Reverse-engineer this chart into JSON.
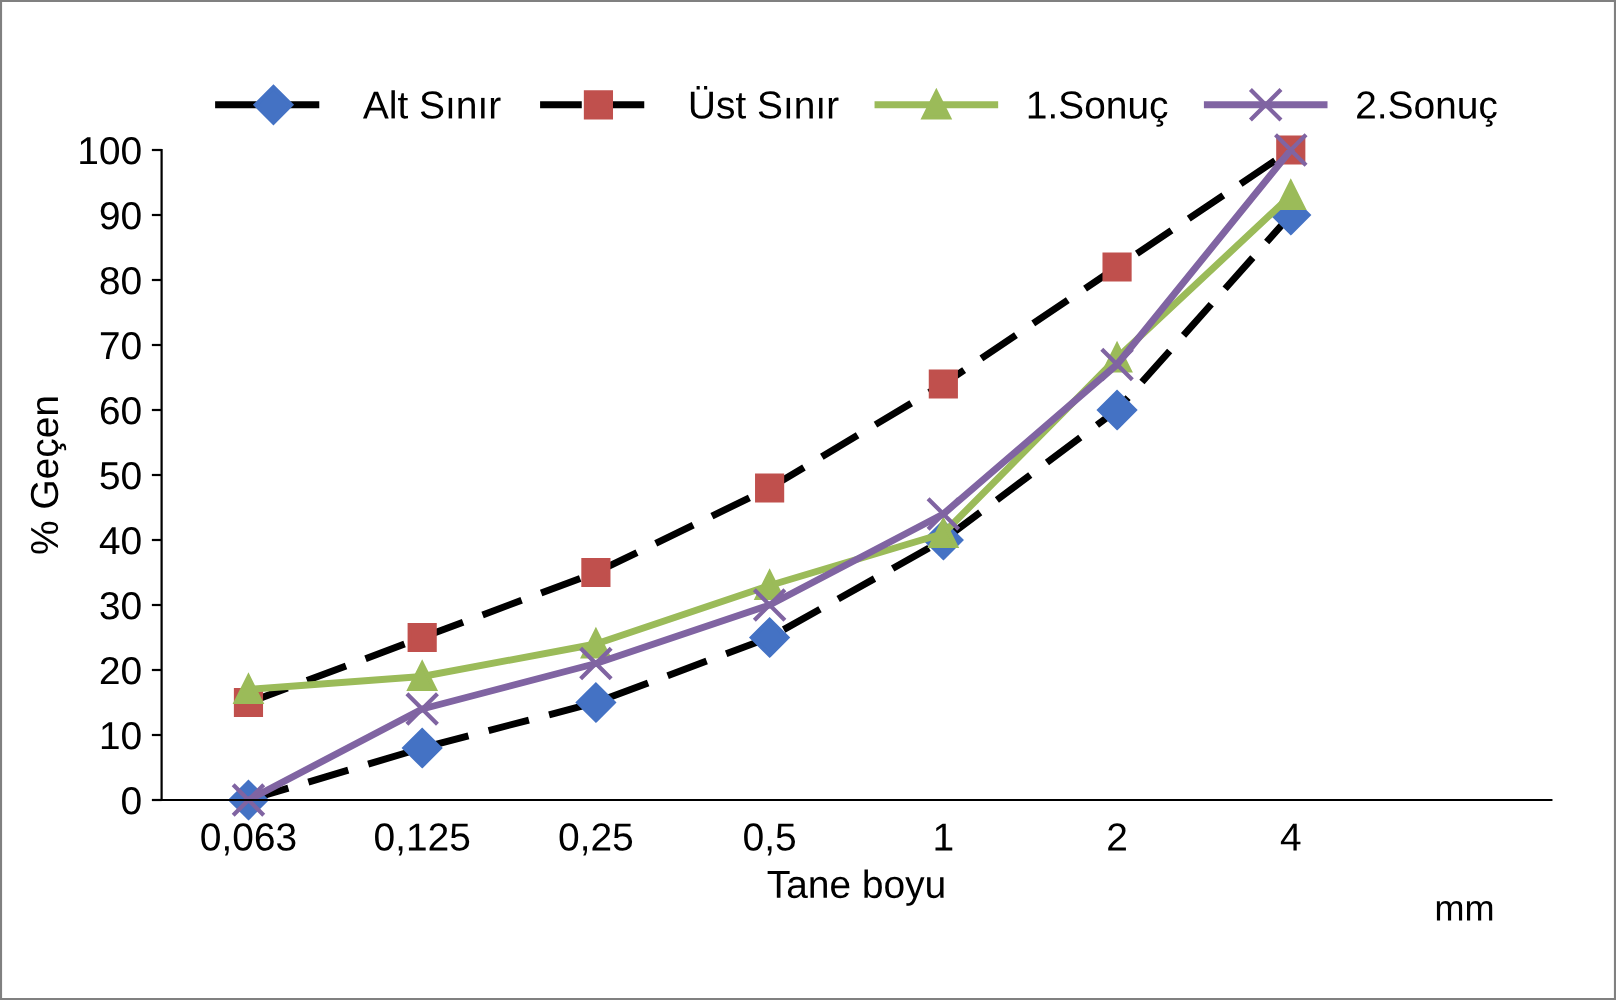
{
  "chart_data": {
    "type": "line",
    "xlabel": "Tane boyu",
    "ylabel": "% Geçen",
    "categories": [
      "0,063",
      "0,125",
      "0,25",
      "0,5",
      "1",
      "2",
      "4",
      null
    ],
    "series": [
      {
        "name": "Alt Sınır",
        "color": "#000000",
        "colors": [
          "#4472c4",
          "#4472c4",
          "#4472c4",
          "#4472c4",
          "#4472c4",
          "#4472c4",
          "#4472c4",
          "#4472c4"
        ],
        "marker": "diamond",
        "line_style": "dashed",
        "values": [
          0,
          8,
          15,
          25,
          40,
          60,
          90,
          null
        ]
      },
      {
        "name": "Üst Sınır",
        "color": "#000000",
        "colors": [
          "#c0504d",
          "#c0504d",
          "#c0504d",
          "#c0504d",
          "#c0504d",
          "#c0504d",
          "#c0504d",
          "#c0504d"
        ],
        "marker": "square",
        "line_style": "dashed",
        "values": [
          15,
          25,
          35,
          48,
          64,
          82,
          100,
          null
        ]
      },
      {
        "name": "1.Sonuç",
        "color": "#9bbb59",
        "marker": "triangle",
        "line_style": "solid",
        "values": [
          17,
          19,
          24,
          33,
          41,
          68,
          93,
          null
        ]
      },
      {
        "name": "2.Sonuç",
        "color": "#8064a2",
        "marker": "cross",
        "line_style": "solid",
        "values": [
          0,
          14,
          21,
          30,
          44,
          67,
          100,
          null
        ]
      }
    ],
    "annotations": [
      "mm"
    ],
    "ylim": [
      0,
      100
    ],
    "yticks": [
      0,
      10,
      20,
      30,
      40,
      50,
      60,
      70,
      80,
      90,
      100
    ],
    "grid": false,
    "legend": "top"
  }
}
